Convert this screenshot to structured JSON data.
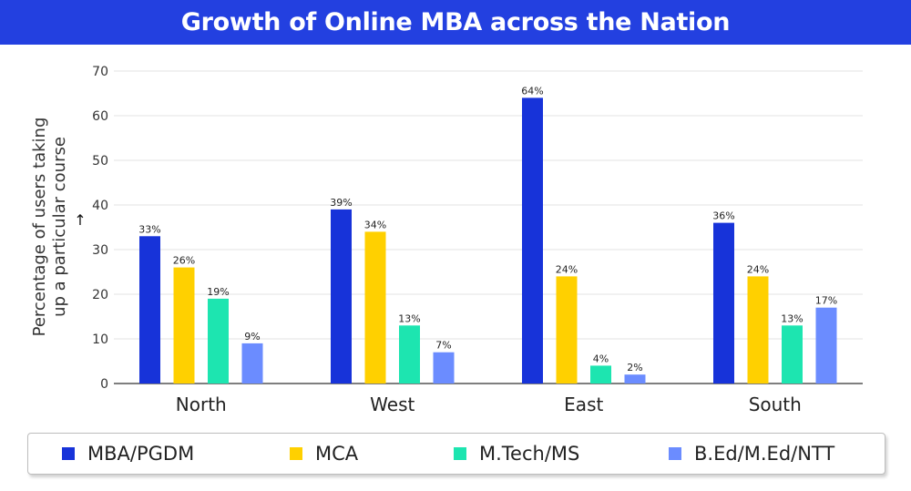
{
  "chart_data": {
    "type": "bar",
    "title": "Growth of Online MBA across the Nation",
    "ylabel_line1": "Percentage of users taking",
    "ylabel_line2": "up a particular course",
    "ylabel_arrow": "↑",
    "ylim": [
      0,
      70
    ],
    "yticks": [
      0,
      10,
      20,
      30,
      40,
      50,
      60,
      70
    ],
    "grid": true,
    "legend_position": "bottom",
    "categories": [
      "North",
      "West",
      "East",
      "South"
    ],
    "series": [
      {
        "name": "MBA/PGDM",
        "color": "#1733d9",
        "values": [
          33,
          39,
          64,
          36
        ],
        "labels": [
          "33%",
          "39%",
          "64%",
          "36%"
        ]
      },
      {
        "name": "MCA",
        "color": "#ffd000",
        "values": [
          26,
          34,
          24,
          24
        ],
        "labels": [
          "26%",
          "34%",
          "24%",
          "24%"
        ]
      },
      {
        "name": "M.Tech/MS",
        "color": "#1de5b0",
        "values": [
          19,
          13,
          4,
          13
        ],
        "labels": [
          "19%",
          "13%",
          "4%",
          "13%"
        ]
      },
      {
        "name": "B.Ed/M.Ed/NTT",
        "color": "#6b8cff",
        "values": [
          9,
          7,
          2,
          17
        ],
        "labels": [
          "9%",
          "7%",
          "2%",
          "17%"
        ]
      }
    ]
  }
}
